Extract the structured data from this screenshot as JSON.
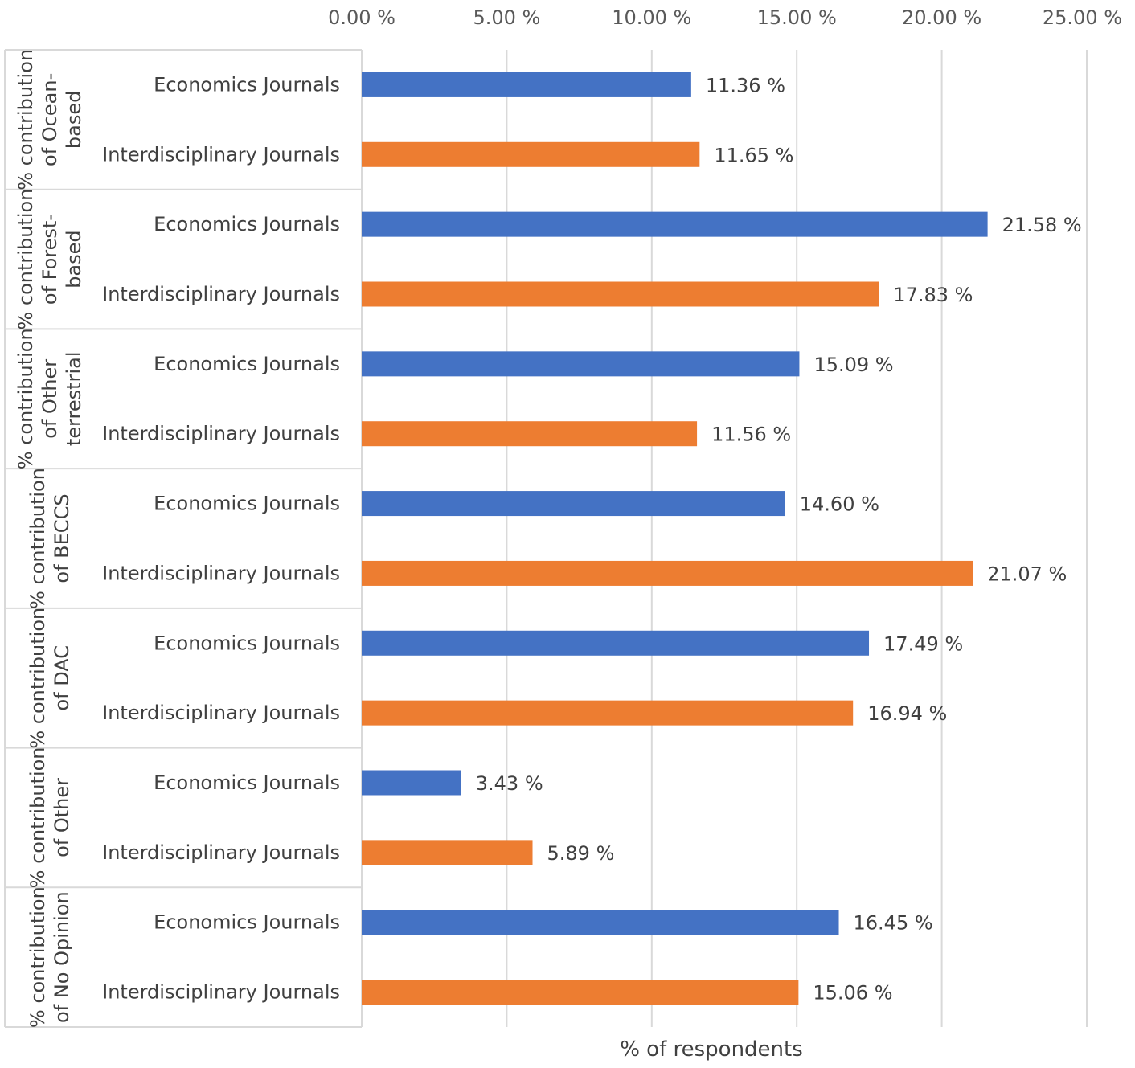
{
  "chart_data": {
    "type": "bar",
    "orientation": "horizontal",
    "xlabel": "% of respondents",
    "xlim": [
      0,
      25
    ],
    "xticks": [
      "0.00 %",
      "5.00 %",
      "10.00 %",
      "15.00 %",
      "20.00 %",
      "25.00 %"
    ],
    "grid": true,
    "value_format": "%.2f %",
    "groups": [
      {
        "label_lines": [
          "% contribution",
          "of Ocean-",
          "based"
        ],
        "bars": [
          {
            "category": "Economics Journals",
            "value": 11.36,
            "label": "11.36 %",
            "color": "#4472C4"
          },
          {
            "category": "Interdisciplinary Journals",
            "value": 11.65,
            "label": "11.65 %",
            "color": "#ED7D31"
          }
        ]
      },
      {
        "label_lines": [
          "% contribution",
          "of Forest-",
          "based"
        ],
        "bars": [
          {
            "category": "Economics Journals",
            "value": 21.58,
            "label": "21.58 %",
            "color": "#4472C4"
          },
          {
            "category": "Interdisciplinary Journals",
            "value": 17.83,
            "label": "17.83 %",
            "color": "#ED7D31"
          }
        ]
      },
      {
        "label_lines": [
          "% contribution",
          "of Other",
          "terrestrial"
        ],
        "bars": [
          {
            "category": "Economics Journals",
            "value": 15.09,
            "label": "15.09 %",
            "color": "#4472C4"
          },
          {
            "category": "Interdisciplinary Journals",
            "value": 11.56,
            "label": "11.56 %",
            "color": "#ED7D31"
          }
        ]
      },
      {
        "label_lines": [
          "% contribution",
          "of BECCS"
        ],
        "bars": [
          {
            "category": "Economics Journals",
            "value": 14.6,
            "label": "14.60 %",
            "color": "#4472C4"
          },
          {
            "category": "Interdisciplinary Journals",
            "value": 21.07,
            "label": "21.07 %",
            "color": "#ED7D31"
          }
        ]
      },
      {
        "label_lines": [
          "% contribution",
          "of DAC"
        ],
        "bars": [
          {
            "category": "Economics Journals",
            "value": 17.49,
            "label": "17.49 %",
            "color": "#4472C4"
          },
          {
            "category": "Interdisciplinary Journals",
            "value": 16.94,
            "label": "16.94 %",
            "color": "#ED7D31"
          }
        ]
      },
      {
        "label_lines": [
          "% contribution",
          "of Other"
        ],
        "bars": [
          {
            "category": "Economics Journals",
            "value": 3.43,
            "label": "3.43 %",
            "color": "#4472C4"
          },
          {
            "category": "Interdisciplinary Journals",
            "value": 5.89,
            "label": "5.89 %",
            "color": "#ED7D31"
          }
        ]
      },
      {
        "label_lines": [
          "% contribution",
          "of No Opinion"
        ],
        "bars": [
          {
            "category": "Economics Journals",
            "value": 16.45,
            "label": "16.45 %",
            "color": "#4472C4"
          },
          {
            "category": "Interdisciplinary Journals",
            "value": 15.06,
            "label": "15.06 %",
            "color": "#ED7D31"
          }
        ]
      }
    ]
  }
}
